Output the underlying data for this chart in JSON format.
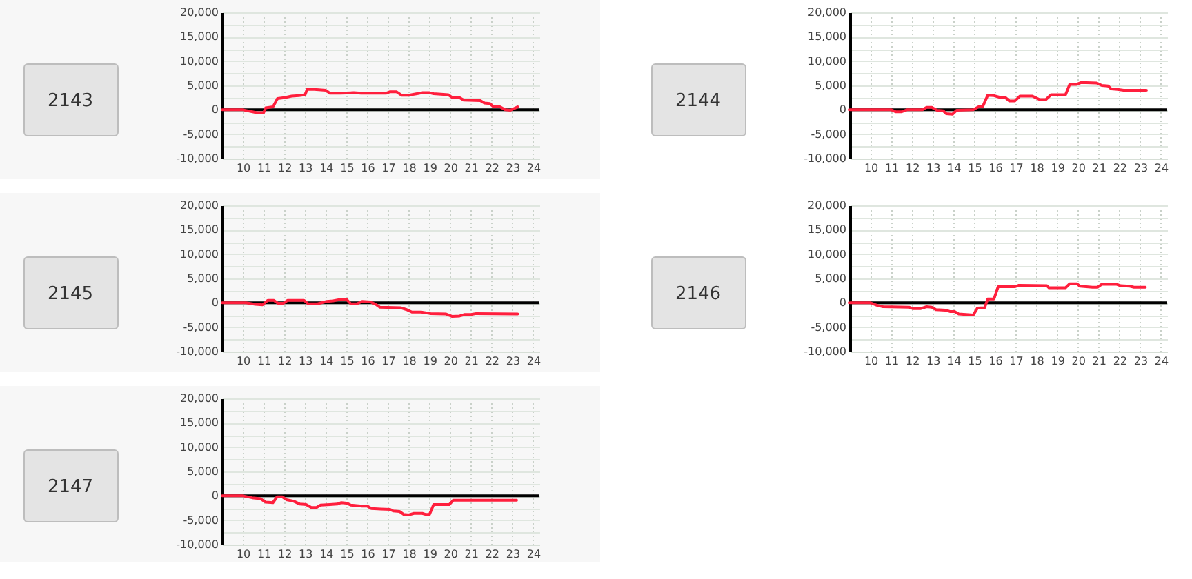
{
  "chart_data": [
    {
      "type": "line",
      "title": "2143",
      "color": "#ff1f3d",
      "xlim": [
        9,
        24.3
      ],
      "ylim": [
        -10000,
        20000
      ],
      "xticks": [
        10,
        11,
        12,
        13,
        14,
        15,
        16,
        17,
        18,
        19,
        20,
        21,
        22,
        23,
        24
      ],
      "yticks": [
        {
          "value": -10000,
          "label": "-10,000"
        },
        {
          "value": -7500,
          "label": null
        },
        {
          "value": -5000,
          "label": "-5,000"
        },
        {
          "value": -2500,
          "label": null
        },
        {
          "value": 0,
          "label": "0"
        },
        {
          "value": 2500,
          "label": null
        },
        {
          "value": 5000,
          "label": "5,000"
        },
        {
          "value": 7500,
          "label": null
        },
        {
          "value": 10000,
          "label": "10,000"
        },
        {
          "value": 12500,
          "label": null
        },
        {
          "value": 15000,
          "label": "15,000"
        },
        {
          "value": 17500,
          "label": null
        },
        {
          "value": 20000,
          "label": "20,000"
        }
      ],
      "grid": true,
      "ref_lines": [
        {
          "axis": "y",
          "value": 0,
          "color": "#000000"
        }
      ],
      "x": [
        9,
        10,
        10.67,
        11,
        11.1,
        11.45,
        11.67,
        12,
        12.35,
        12.7,
        13,
        13.1,
        13.45,
        14,
        14.2,
        14.7,
        15.35,
        15.7,
        16.9,
        17.1,
        17.4,
        17.65,
        18,
        18.4,
        18.65,
        19,
        19.2,
        19.9,
        20.1,
        20.45,
        20.65,
        21.45,
        21.65,
        21.9,
        22.1,
        22.4,
        22.65,
        22.9,
        23.25
      ],
      "values": [
        0,
        0,
        -600,
        -600,
        400,
        600,
        2300,
        2500,
        2800,
        2900,
        3100,
        4200,
        4200,
        4000,
        3400,
        3400,
        3500,
        3400,
        3400,
        3700,
        3700,
        3000,
        3000,
        3300,
        3500,
        3500,
        3300,
        3100,
        2500,
        2500,
        2000,
        1900,
        1400,
        1300,
        600,
        600,
        0,
        -100,
        600
      ]
    },
    {
      "type": "line",
      "title": "2144",
      "color": "#ff1f3d",
      "xlim": [
        9,
        24.3
      ],
      "ylim": [
        -10000,
        20000
      ],
      "xticks": [
        10,
        11,
        12,
        13,
        14,
        15,
        16,
        17,
        18,
        19,
        20,
        21,
        22,
        23,
        24
      ],
      "yticks": [
        {
          "value": -10000,
          "label": "-10,000"
        },
        {
          "value": -7500,
          "label": null
        },
        {
          "value": -5000,
          "label": "-5,000"
        },
        {
          "value": -2500,
          "label": null
        },
        {
          "value": 0,
          "label": "0"
        },
        {
          "value": 2500,
          "label": null
        },
        {
          "value": 5000,
          "label": "5,000"
        },
        {
          "value": 7500,
          "label": null
        },
        {
          "value": 10000,
          "label": "10,000"
        },
        {
          "value": 12500,
          "label": null
        },
        {
          "value": 15000,
          "label": "15,000"
        },
        {
          "value": 17500,
          "label": null
        },
        {
          "value": 20000,
          "label": "20,000"
        }
      ],
      "grid": true,
      "ref_lines": [
        {
          "axis": "y",
          "value": 0,
          "color": "#000000"
        }
      ],
      "x": [
        9,
        11,
        11.2,
        11.5,
        11.75,
        12.5,
        12.7,
        12.95,
        13.2,
        13.5,
        13.65,
        13.95,
        14.15,
        14.95,
        15.2,
        15.4,
        15.65,
        15.95,
        16.2,
        16.5,
        16.7,
        16.95,
        17.2,
        17.8,
        18.15,
        18.45,
        18.7,
        19.4,
        19.6,
        19.9,
        20.15,
        20.9,
        21.15,
        21.45,
        21.6,
        21.9,
        22.2,
        23.3
      ],
      "values": [
        0,
        0,
        -400,
        -400,
        0,
        0,
        500,
        500,
        -100,
        -200,
        -800,
        -900,
        -100,
        0,
        600,
        600,
        3000,
        2900,
        2600,
        2500,
        1800,
        1800,
        2800,
        2800,
        2100,
        2100,
        3100,
        3100,
        5200,
        5200,
        5600,
        5500,
        5000,
        4900,
        4300,
        4200,
        4000,
        4000
      ]
    },
    {
      "type": "line",
      "title": "2145",
      "color": "#ff1f3d",
      "xlim": [
        9,
        24.3
      ],
      "ylim": [
        -10000,
        20000
      ],
      "xticks": [
        10,
        11,
        12,
        13,
        14,
        15,
        16,
        17,
        18,
        19,
        20,
        21,
        22,
        23,
        24
      ],
      "yticks": [
        {
          "value": -10000,
          "label": "-10,000"
        },
        {
          "value": -7500,
          "label": null
        },
        {
          "value": -5000,
          "label": "-5,000"
        },
        {
          "value": -2500,
          "label": null
        },
        {
          "value": 0,
          "label": "0"
        },
        {
          "value": 2500,
          "label": null
        },
        {
          "value": 5000,
          "label": "5,000"
        },
        {
          "value": 7500,
          "label": null
        },
        {
          "value": 10000,
          "label": "10,000"
        },
        {
          "value": 12500,
          "label": null
        },
        {
          "value": 15000,
          "label": "15,000"
        },
        {
          "value": 17500,
          "label": null
        },
        {
          "value": 20000,
          "label": "20,000"
        }
      ],
      "grid": true,
      "ref_lines": [
        {
          "axis": "y",
          "value": 0,
          "color": "#000000"
        }
      ],
      "x": [
        9,
        10.15,
        10.6,
        10.95,
        11.2,
        11.5,
        11.7,
        11.95,
        12.15,
        12.95,
        13.15,
        13.6,
        14.05,
        14.35,
        14.7,
        15,
        15.2,
        15.5,
        15.75,
        16.15,
        16.4,
        16.6,
        17.6,
        17.9,
        18.15,
        18.6,
        19.05,
        19.8,
        20.1,
        20.45,
        20.7,
        21,
        21.25,
        23.25
      ],
      "values": [
        0,
        0,
        -300,
        -400,
        500,
        500,
        -100,
        -100,
        500,
        500,
        -200,
        -200,
        300,
        400,
        700,
        700,
        -200,
        -200,
        300,
        200,
        -300,
        -900,
        -1000,
        -1400,
        -1900,
        -1900,
        -2200,
        -2300,
        -2800,
        -2700,
        -2400,
        -2400,
        -2200,
        -2300
      ]
    },
    {
      "type": "line",
      "title": "2146",
      "color": "#ff1f3d",
      "xlim": [
        9,
        24.3
      ],
      "ylim": [
        -10000,
        20000
      ],
      "xticks": [
        10,
        11,
        12,
        13,
        14,
        15,
        16,
        17,
        18,
        19,
        20,
        21,
        22,
        23,
        24
      ],
      "yticks": [
        {
          "value": -10000,
          "label": "-10,000"
        },
        {
          "value": -7500,
          "label": null
        },
        {
          "value": -5000,
          "label": "-5,000"
        },
        {
          "value": -2500,
          "label": null
        },
        {
          "value": 0,
          "label": "0"
        },
        {
          "value": 2500,
          "label": null
        },
        {
          "value": 5000,
          "label": "5,000"
        },
        {
          "value": 7500,
          "label": null
        },
        {
          "value": 10000,
          "label": "10,000"
        },
        {
          "value": 12500,
          "label": null
        },
        {
          "value": 15000,
          "label": "15,000"
        },
        {
          "value": 17500,
          "label": null
        },
        {
          "value": 20000,
          "label": "20,000"
        }
      ],
      "grid": true,
      "ref_lines": [
        {
          "axis": "y",
          "value": 0,
          "color": "#000000"
        }
      ],
      "x": [
        9,
        10,
        10.3,
        10.6,
        11.85,
        12.05,
        12.4,
        12.7,
        12.95,
        13.15,
        13.6,
        13.85,
        14.05,
        14.25,
        14.6,
        14.95,
        15.15,
        15.5,
        15.65,
        15.95,
        16.15,
        16.95,
        17.15,
        18.5,
        18.6,
        19.4,
        19.6,
        19.95,
        20.1,
        20.7,
        20.95,
        21.15,
        21.85,
        22.05,
        22.5,
        22.7,
        23.25
      ],
      "values": [
        0,
        0,
        -500,
        -800,
        -900,
        -1200,
        -1200,
        -800,
        -900,
        -1400,
        -1500,
        -1800,
        -1800,
        -2300,
        -2400,
        -2500,
        -1100,
        -1000,
        800,
        800,
        3300,
        3300,
        3600,
        3500,
        3100,
        3100,
        3900,
        3900,
        3400,
        3200,
        3200,
        3800,
        3800,
        3500,
        3400,
        3200,
        3200
      ]
    },
    {
      "type": "line",
      "title": "2147",
      "color": "#ff1f3d",
      "xlim": [
        9,
        24.3
      ],
      "ylim": [
        -10000,
        20000
      ],
      "xticks": [
        10,
        11,
        12,
        13,
        14,
        15,
        16,
        17,
        18,
        19,
        20,
        21,
        22,
        23,
        24
      ],
      "yticks": [
        {
          "value": -10000,
          "label": "-10,000"
        },
        {
          "value": -7500,
          "label": null
        },
        {
          "value": -5000,
          "label": "-5,000"
        },
        {
          "value": -2500,
          "label": null
        },
        {
          "value": 0,
          "label": "0"
        },
        {
          "value": 2500,
          "label": null
        },
        {
          "value": 5000,
          "label": "5,000"
        },
        {
          "value": 7500,
          "label": null
        },
        {
          "value": 10000,
          "label": "10,000"
        },
        {
          "value": 12500,
          "label": null
        },
        {
          "value": 15000,
          "label": "15,000"
        },
        {
          "value": 17500,
          "label": null
        },
        {
          "value": 20000,
          "label": "20,000"
        }
      ],
      "grid": true,
      "ref_lines": [
        {
          "axis": "y",
          "value": 0,
          "color": "#000000"
        }
      ],
      "x": [
        9,
        10,
        10.45,
        10.85,
        11.1,
        11.45,
        11.65,
        11.9,
        12.1,
        12.45,
        12.75,
        13.05,
        13.3,
        13.55,
        13.75,
        14.2,
        14.55,
        14.75,
        15,
        15.2,
        15.75,
        16,
        16.2,
        16.65,
        17.1,
        17.25,
        17.55,
        17.75,
        18,
        18.25,
        18.65,
        18.8,
        19,
        19.2,
        19.95,
        20.15,
        23.2
      ],
      "values": [
        0,
        0,
        -400,
        -600,
        -1300,
        -1400,
        -200,
        -200,
        -800,
        -1100,
        -1700,
        -1800,
        -2400,
        -2400,
        -1900,
        -1800,
        -1700,
        -1400,
        -1500,
        -1900,
        -2100,
        -2100,
        -2600,
        -2700,
        -2800,
        -3100,
        -3200,
        -3800,
        -3900,
        -3600,
        -3600,
        -3800,
        -3800,
        -1800,
        -1800,
        -900,
        -900
      ]
    }
  ]
}
